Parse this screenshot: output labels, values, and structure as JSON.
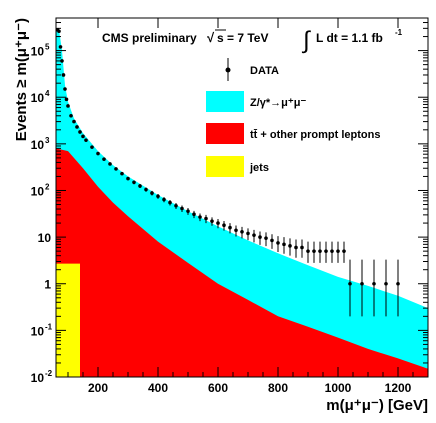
{
  "chart_data": {
    "type": "area",
    "title": "CMS preliminary",
    "sqrt_s_label": "s = 7 TeV",
    "lumi_label": "L dt = 1.1 fb",
    "lumi_superscript": "-1",
    "xlabel": "m(μ⁺μ⁻) [GeV]",
    "ylabel": "Events ≥ m(μ⁺μ⁻)",
    "xlim": [
      60,
      1300
    ],
    "ylim": [
      0.01,
      500000
    ],
    "yscale": "log",
    "x_ticks": [
      "200",
      "400",
      "600",
      "800",
      "1000",
      "1200"
    ],
    "x_tick_values": [
      200,
      400,
      600,
      800,
      1000,
      1200
    ],
    "y_tick_values": [
      0.01,
      0.1,
      1,
      10,
      100,
      1000,
      10000,
      100000
    ],
    "y_ticks": [
      "10",
      "10",
      "1",
      "10",
      "10",
      "10",
      "10",
      "10"
    ],
    "y_ticks_exp": [
      "-2",
      "-1",
      "",
      "",
      "2",
      "3",
      "4",
      "5"
    ],
    "legend_position": "top-right",
    "legend": [
      {
        "label": "DATA",
        "color": "#000000",
        "kind": "marker"
      },
      {
        "label": "Z/γ*→μ⁺μ⁻",
        "color": "#00ffff",
        "kind": "box"
      },
      {
        "label": "tt̄ + other prompt leptons",
        "color": "#ff0000",
        "kind": "box"
      },
      {
        "label": "jets",
        "color": "#ffff00",
        "kind": "box"
      }
    ],
    "series": [
      {
        "name": "Z/γ*→μ⁺μ⁻",
        "color": "#00ffff",
        "x": [
          60,
          70,
          80,
          90,
          100,
          120,
          150,
          200,
          250,
          300,
          400,
          500,
          600,
          700,
          800,
          900,
          1000,
          1100,
          1200,
          1300
        ],
        "values": [
          300000,
          280000,
          100000,
          18000,
          8000,
          3500,
          1700,
          700,
          350,
          200,
          80,
          36,
          17,
          8.5,
          4.5,
          2.5,
          1.4,
          0.9,
          0.55,
          0.3
        ]
      },
      {
        "name": "tt̄ + other prompt leptons",
        "color": "#ff0000",
        "x": [
          60,
          100,
          150,
          200,
          250,
          300,
          400,
          500,
          600,
          700,
          800,
          900,
          1000,
          1100,
          1200,
          1300
        ],
        "values": [
          800,
          700,
          300,
          120,
          55,
          28,
          8,
          2.8,
          1.0,
          0.45,
          0.2,
          0.12,
          0.07,
          0.04,
          0.025,
          0.015
        ]
      },
      {
        "name": "jets",
        "color": "#ffff00",
        "x": [
          60,
          140
        ],
        "values": [
          2.7,
          2.7
        ]
      }
    ],
    "data_points": {
      "name": "DATA",
      "x": [
        60,
        65,
        70,
        75,
        80,
        85,
        90,
        95,
        100,
        110,
        120,
        130,
        140,
        150,
        160,
        180,
        200,
        220,
        240,
        260,
        280,
        300,
        320,
        340,
        360,
        380,
        400,
        420,
        440,
        460,
        480,
        500,
        520,
        540,
        560,
        580,
        600,
        620,
        640,
        660,
        680,
        700,
        720,
        740,
        760,
        780,
        800,
        820,
        840,
        860,
        880,
        900,
        920,
        940,
        960,
        980,
        1000,
        1020,
        1040,
        1080,
        1120,
        1160,
        1200
      ],
      "values": [
        280000,
        280000,
        260000,
        120000,
        60000,
        30000,
        15000,
        9000,
        6500,
        4000,
        3000,
        2300,
        1800,
        1450,
        1200,
        850,
        620,
        470,
        370,
        290,
        230,
        180,
        150,
        125,
        105,
        88,
        75,
        64,
        55,
        47,
        41,
        36,
        31,
        27,
        25,
        22,
        20,
        18,
        16,
        14,
        13,
        12,
        11,
        10,
        9.5,
        8.5,
        7.5,
        7,
        6.5,
        6,
        6,
        5,
        5,
        5,
        5,
        5,
        5,
        5,
        1,
        1,
        1,
        1,
        1
      ],
      "err_low": [
        0,
        0,
        0,
        0,
        0,
        0,
        0,
        0,
        0,
        0,
        0,
        0,
        0,
        0,
        0,
        0,
        0,
        0,
        0,
        0,
        0,
        15,
        14,
        12,
        11,
        10,
        9,
        8,
        7.5,
        7,
        6.5,
        6,
        5.5,
        5,
        5,
        4.5,
        4.5,
        4.2,
        4,
        3.7,
        3.6,
        3.4,
        3.3,
        3.2,
        3.1,
        2.9,
        2.7,
        2.6,
        2.5,
        2.4,
        2.4,
        2.2,
        2.2,
        2.2,
        2.2,
        2.2,
        2.2,
        2.2,
        0.8,
        0.8,
        0.8,
        0.8,
        0.8
      ],
      "err_high": [
        0,
        0,
        0,
        0,
        0,
        0,
        0,
        0,
        0,
        0,
        0,
        0,
        0,
        0,
        0,
        0,
        0,
        0,
        0,
        0,
        0,
        15,
        14,
        12,
        11,
        10,
        9,
        8,
        7.5,
        7,
        6.5,
        6,
        5.5,
        5,
        5,
        4.5,
        4.5,
        4.2,
        4,
        3.7,
        3.6,
        3.4,
        3.3,
        3.2,
        3.1,
        3.0,
        3.0,
        3.0,
        2.9,
        2.9,
        2.9,
        3.0,
        3.0,
        3.0,
        3.0,
        3.0,
        3.0,
        3.0,
        2.3,
        2.3,
        2.3,
        2.3,
        2.3
      ]
    }
  }
}
